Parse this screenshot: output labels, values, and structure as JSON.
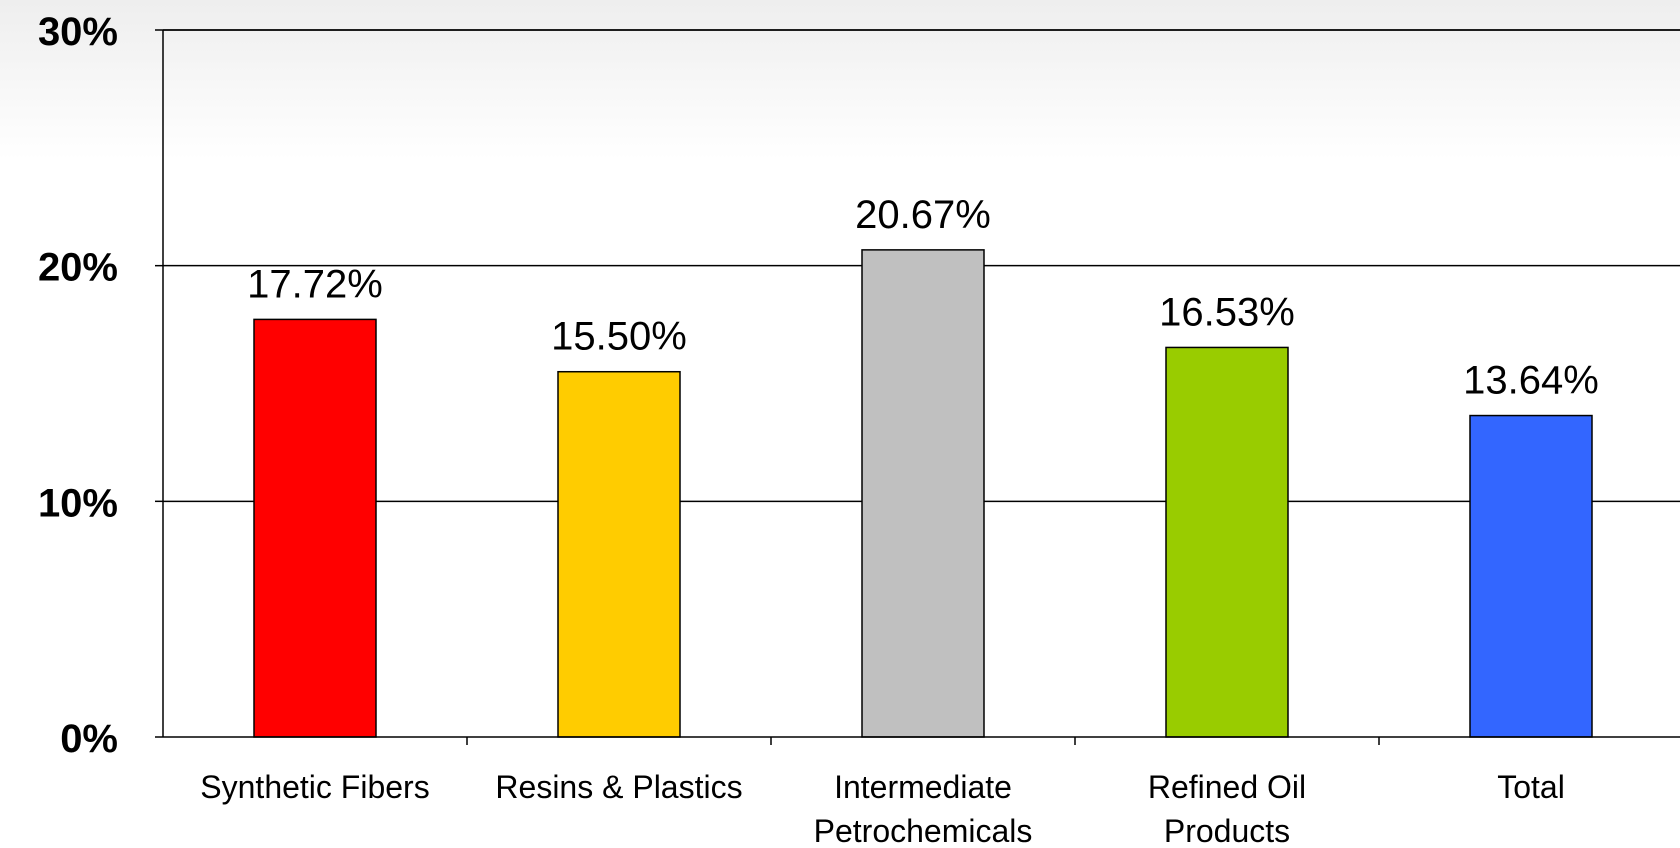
{
  "chart_data": {
    "type": "bar",
    "categories": [
      [
        "Synthetic Fibers"
      ],
      [
        "Resins & Plastics"
      ],
      [
        "Intermediate",
        "Petrochemicals"
      ],
      [
        "Refined Oil",
        "Products"
      ],
      [
        "Total"
      ]
    ],
    "values": [
      17.72,
      15.5,
      20.67,
      16.53,
      13.64
    ],
    "data_labels": [
      "17.72%",
      "15.50%",
      "20.67%",
      "16.53%",
      "13.64%"
    ],
    "colors": [
      "#ff0000",
      "#ffcc00",
      "#c0c0c0",
      "#99cc00",
      "#3366ff"
    ],
    "ylim": [
      0,
      30
    ],
    "yticks": [
      0,
      10,
      20,
      30
    ],
    "ytick_labels": [
      "0%",
      "10%",
      "20%",
      "30%"
    ],
    "grid": true,
    "title": "",
    "xlabel": "",
    "ylabel": ""
  }
}
